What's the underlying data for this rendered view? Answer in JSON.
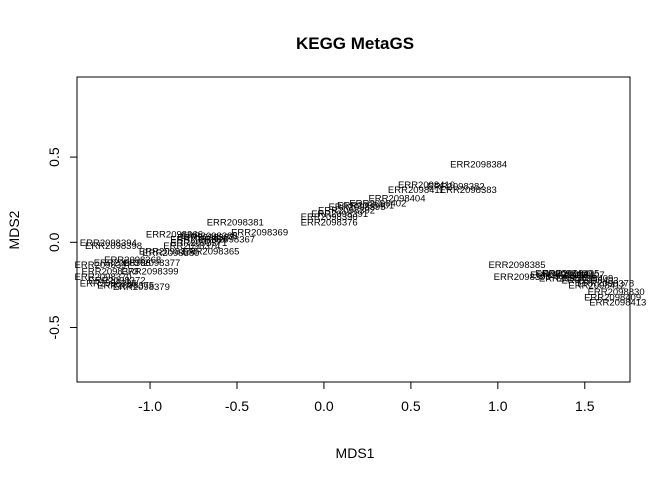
{
  "chart_data": {
    "type": "scatter",
    "title": "KEGG MetaGS",
    "xlabel": "MDS1",
    "ylabel": "MDS2",
    "xlim": [
      -1.42,
      1.76
    ],
    "ylim": [
      -0.82,
      0.97
    ],
    "xticks": [
      -1.0,
      -0.5,
      0.0,
      0.5,
      1.0,
      1.5
    ],
    "xtick_labels": [
      "-1.0",
      "-0.5",
      "0.0",
      "0.5",
      "1.0",
      "1.5"
    ],
    "yticks": [
      -0.5,
      0.0,
      0.5
    ],
    "ytick_labels": [
      "-0.5",
      "0.0",
      "0.5"
    ],
    "grid": false,
    "marker": "text-labels",
    "points": [
      {
        "label": "ERR2098384",
        "x": 0.89,
        "y": 0.46
      },
      {
        "label": "ERR2098383",
        "x": 0.83,
        "y": 0.31
      },
      {
        "label": "ERR2098382",
        "x": 0.76,
        "y": 0.33
      },
      {
        "label": "ERR2098410",
        "x": 0.59,
        "y": 0.34
      },
      {
        "label": "ERR2098411",
        "x": 0.53,
        "y": 0.31
      },
      {
        "label": "ERR2098404",
        "x": 0.42,
        "y": 0.26
      },
      {
        "label": "ERR2098402",
        "x": 0.31,
        "y": 0.23
      },
      {
        "label": "ERR2098401",
        "x": 0.24,
        "y": 0.22
      },
      {
        "label": "ERR2098395",
        "x": 0.19,
        "y": 0.21
      },
      {
        "label": "ERR2098392",
        "x": 0.13,
        "y": 0.19
      },
      {
        "label": "ERR2098391",
        "x": 0.09,
        "y": 0.17
      },
      {
        "label": "ERR2098390",
        "x": 0.03,
        "y": 0.15
      },
      {
        "label": "ERR2098376",
        "x": 0.03,
        "y": 0.12
      },
      {
        "label": "ERR2098381",
        "x": -0.51,
        "y": 0.12
      },
      {
        "label": "ERR2098369",
        "x": -0.37,
        "y": 0.06
      },
      {
        "label": "ERR2098366",
        "x": -0.86,
        "y": 0.05
      },
      {
        "label": "ERR2098387",
        "x": -0.68,
        "y": 0.03
      },
      {
        "label": "ERR2098389",
        "x": -0.72,
        "y": 0.02
      },
      {
        "label": "ERR2098388",
        "x": -0.66,
        "y": 0.04
      },
      {
        "label": "ERR2098367",
        "x": -0.56,
        "y": 0.02
      },
      {
        "label": "ERR2098371",
        "x": -0.72,
        "y": 0.0
      },
      {
        "label": "ERR2098374",
        "x": -0.76,
        "y": -0.02
      },
      {
        "label": "ERR2098365",
        "x": -0.65,
        "y": -0.05
      },
      {
        "label": "ERR2098378",
        "x": -0.9,
        "y": -0.05
      },
      {
        "label": "ERR2098380",
        "x": -0.88,
        "y": -0.06
      },
      {
        "label": "ERR2098394",
        "x": -1.24,
        "y": 0.0
      },
      {
        "label": "ERR2098398",
        "x": -1.21,
        "y": -0.02
      },
      {
        "label": "ERR2098368",
        "x": -1.1,
        "y": -0.1
      },
      {
        "label": "ERR2098396",
        "x": -1.16,
        "y": -0.12
      },
      {
        "label": "ERR2098397",
        "x": -1.27,
        "y": -0.13
      },
      {
        "label": "ERR2098377",
        "x": -0.99,
        "y": -0.12
      },
      {
        "label": "ERR2098399",
        "x": -1.0,
        "y": -0.17
      },
      {
        "label": "ERR2098373",
        "x": -1.23,
        "y": -0.17
      },
      {
        "label": "ERR2098370",
        "x": -1.27,
        "y": -0.2
      },
      {
        "label": "ERR2098372",
        "x": -1.19,
        "y": -0.22
      },
      {
        "label": "ERR2098386",
        "x": -1.24,
        "y": -0.24
      },
      {
        "label": "ERR2098375",
        "x": -1.14,
        "y": -0.25
      },
      {
        "label": "ERR2098379",
        "x": -1.05,
        "y": -0.26
      },
      {
        "label": "ERR2098385",
        "x": 1.11,
        "y": -0.13
      },
      {
        "label": "ERR2098393",
        "x": 1.14,
        "y": -0.2
      },
      {
        "label": "ERR2098400",
        "x": 1.38,
        "y": -0.18
      },
      {
        "label": "ERR2098405",
        "x": 1.42,
        "y": -0.18
      },
      {
        "label": "ERR2098406",
        "x": 1.35,
        "y": -0.19
      },
      {
        "label": "ERR2098407",
        "x": 1.45,
        "y": -0.19
      },
      {
        "label": "ERR2098408",
        "x": 1.4,
        "y": -0.21
      },
      {
        "label": "ERR2098409",
        "x": 1.5,
        "y": -0.21
      },
      {
        "label": "ERR2098403",
        "x": 1.53,
        "y": -0.22
      },
      {
        "label": "ERR2098378",
        "x": 1.62,
        "y": -0.24
      },
      {
        "label": "ERR2098412",
        "x": 1.57,
        "y": -0.25
      },
      {
        "label": "ERR2098830",
        "x": 1.68,
        "y": -0.29
      },
      {
        "label": "ERR2098409",
        "x": 1.66,
        "y": -0.32
      },
      {
        "label": "ERR2098413",
        "x": 1.69,
        "y": -0.35
      }
    ]
  }
}
